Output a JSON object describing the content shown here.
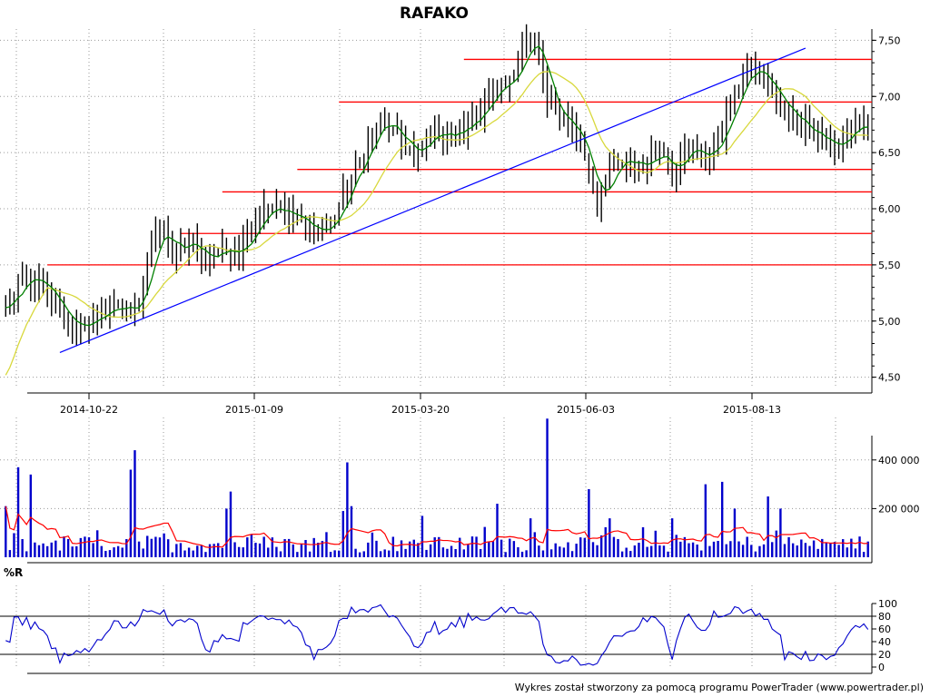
{
  "chart_data": [
    {
      "type": "candlestick",
      "title": "RAFAKO",
      "x_tick_labels": [
        "2014-10-22",
        "2015-01-09",
        "2015-03-20",
        "2015-06-03",
        "2015-08-13"
      ],
      "ylim": [
        4.4,
        7.6
      ],
      "y_tick_labels": [
        "4,50",
        "5,00",
        "5,50",
        "6,00",
        "6,50",
        "7,00",
        "7,50"
      ],
      "grid": true,
      "close_path": [
        [
          0,
          5.1
        ],
        [
          5,
          5.4
        ],
        [
          10,
          5.25
        ],
        [
          14,
          5.05
        ],
        [
          18,
          4.9
        ],
        [
          20,
          5.0
        ],
        [
          24,
          5.1
        ],
        [
          30,
          5.1
        ],
        [
          32,
          5.2
        ],
        [
          35,
          5.7
        ],
        [
          38,
          5.8
        ],
        [
          40,
          5.6
        ],
        [
          44,
          5.7
        ],
        [
          48,
          5.55
        ],
        [
          52,
          5.65
        ],
        [
          56,
          5.6
        ],
        [
          60,
          5.9
        ],
        [
          63,
          6.05
        ],
        [
          66,
          6.0
        ],
        [
          70,
          5.9
        ],
        [
          74,
          5.8
        ],
        [
          78,
          5.85
        ],
        [
          82,
          6.2
        ],
        [
          86,
          6.5
        ],
        [
          90,
          6.8
        ],
        [
          92,
          6.7
        ],
        [
          95,
          6.6
        ],
        [
          99,
          6.45
        ],
        [
          102,
          6.7
        ],
        [
          106,
          6.65
        ],
        [
          110,
          6.7
        ],
        [
          114,
          6.9
        ],
        [
          118,
          7.05
        ],
        [
          121,
          7.1
        ],
        [
          124,
          7.45
        ],
        [
          126,
          7.5
        ],
        [
          128,
          7.35
        ],
        [
          130,
          6.95
        ],
        [
          133,
          6.8
        ],
        [
          136,
          6.75
        ],
        [
          139,
          6.45
        ],
        [
          142,
          6.05
        ],
        [
          145,
          6.35
        ],
        [
          148,
          6.4
        ],
        [
          151,
          6.4
        ],
        [
          154,
          6.4
        ],
        [
          157,
          6.55
        ],
        [
          160,
          6.3
        ],
        [
          163,
          6.6
        ],
        [
          166,
          6.45
        ],
        [
          169,
          6.5
        ],
        [
          172,
          6.7
        ],
        [
          175,
          7.0
        ],
        [
          178,
          7.25
        ],
        [
          181,
          7.2
        ],
        [
          184,
          7.05
        ],
        [
          187,
          6.85
        ],
        [
          190,
          6.8
        ],
        [
          193,
          6.7
        ],
        [
          196,
          6.65
        ],
        [
          199,
          6.5
        ],
        [
          202,
          6.7
        ],
        [
          205,
          6.75
        ],
        [
          207,
          6.65
        ]
      ],
      "series": [
        {
          "name": "",
          "color": "#008000",
          "values": []
        },
        {
          "name": "",
          "color": "#d8d83c",
          "values": []
        }
      ],
      "trend_line": {
        "from": [
          13,
          4.72
        ],
        "to": [
          192,
          7.43
        ]
      },
      "horizontal_levels": [
        {
          "from_x": 110,
          "value": 7.33
        },
        {
          "from_x": 80,
          "value": 6.95
        },
        {
          "from_x": 70,
          "value": 6.35
        },
        {
          "from_x": 52,
          "value": 6.15
        },
        {
          "from_x": 42,
          "value": 5.78
        },
        {
          "from_x": 10,
          "value": 5.5
        }
      ],
      "candle_color": "#000000",
      "level_color": "#ff0000",
      "trend_color": "#0000ff"
    },
    {
      "type": "bar",
      "ylim": [
        0,
        500000
      ],
      "y_tick_labels": [
        "200 000",
        "400 000"
      ],
      "bar_color": "#0000cc",
      "average_line_color": "#ff0000",
      "spikes": [
        [
          0,
          210000
        ],
        [
          3,
          370000
        ],
        [
          6,
          340000
        ],
        [
          30,
          360000
        ],
        [
          31,
          440000
        ],
        [
          53,
          200000
        ],
        [
          54,
          270000
        ],
        [
          82,
          390000
        ],
        [
          81,
          190000
        ],
        [
          83,
          210000
        ],
        [
          100,
          170000
        ],
        [
          118,
          220000
        ],
        [
          126,
          160000
        ],
        [
          130,
          570000
        ],
        [
          140,
          280000
        ],
        [
          145,
          160000
        ],
        [
          160,
          160000
        ],
        [
          168,
          300000
        ],
        [
          172,
          310000
        ],
        [
          175,
          200000
        ],
        [
          183,
          250000
        ],
        [
          186,
          200000
        ]
      ]
    },
    {
      "type": "line",
      "title": "%R",
      "ylim": [
        0,
        100
      ],
      "y_tick_labels": [
        "0",
        "20",
        "40",
        "60",
        "80",
        "100"
      ],
      "reference_levels": [
        20,
        80
      ],
      "line_color": "#0000cc"
    }
  ],
  "footer": {
    "credit": "Wykres został stworzony za pomocą programu PowerTrader (www.powertrader.pl)"
  }
}
